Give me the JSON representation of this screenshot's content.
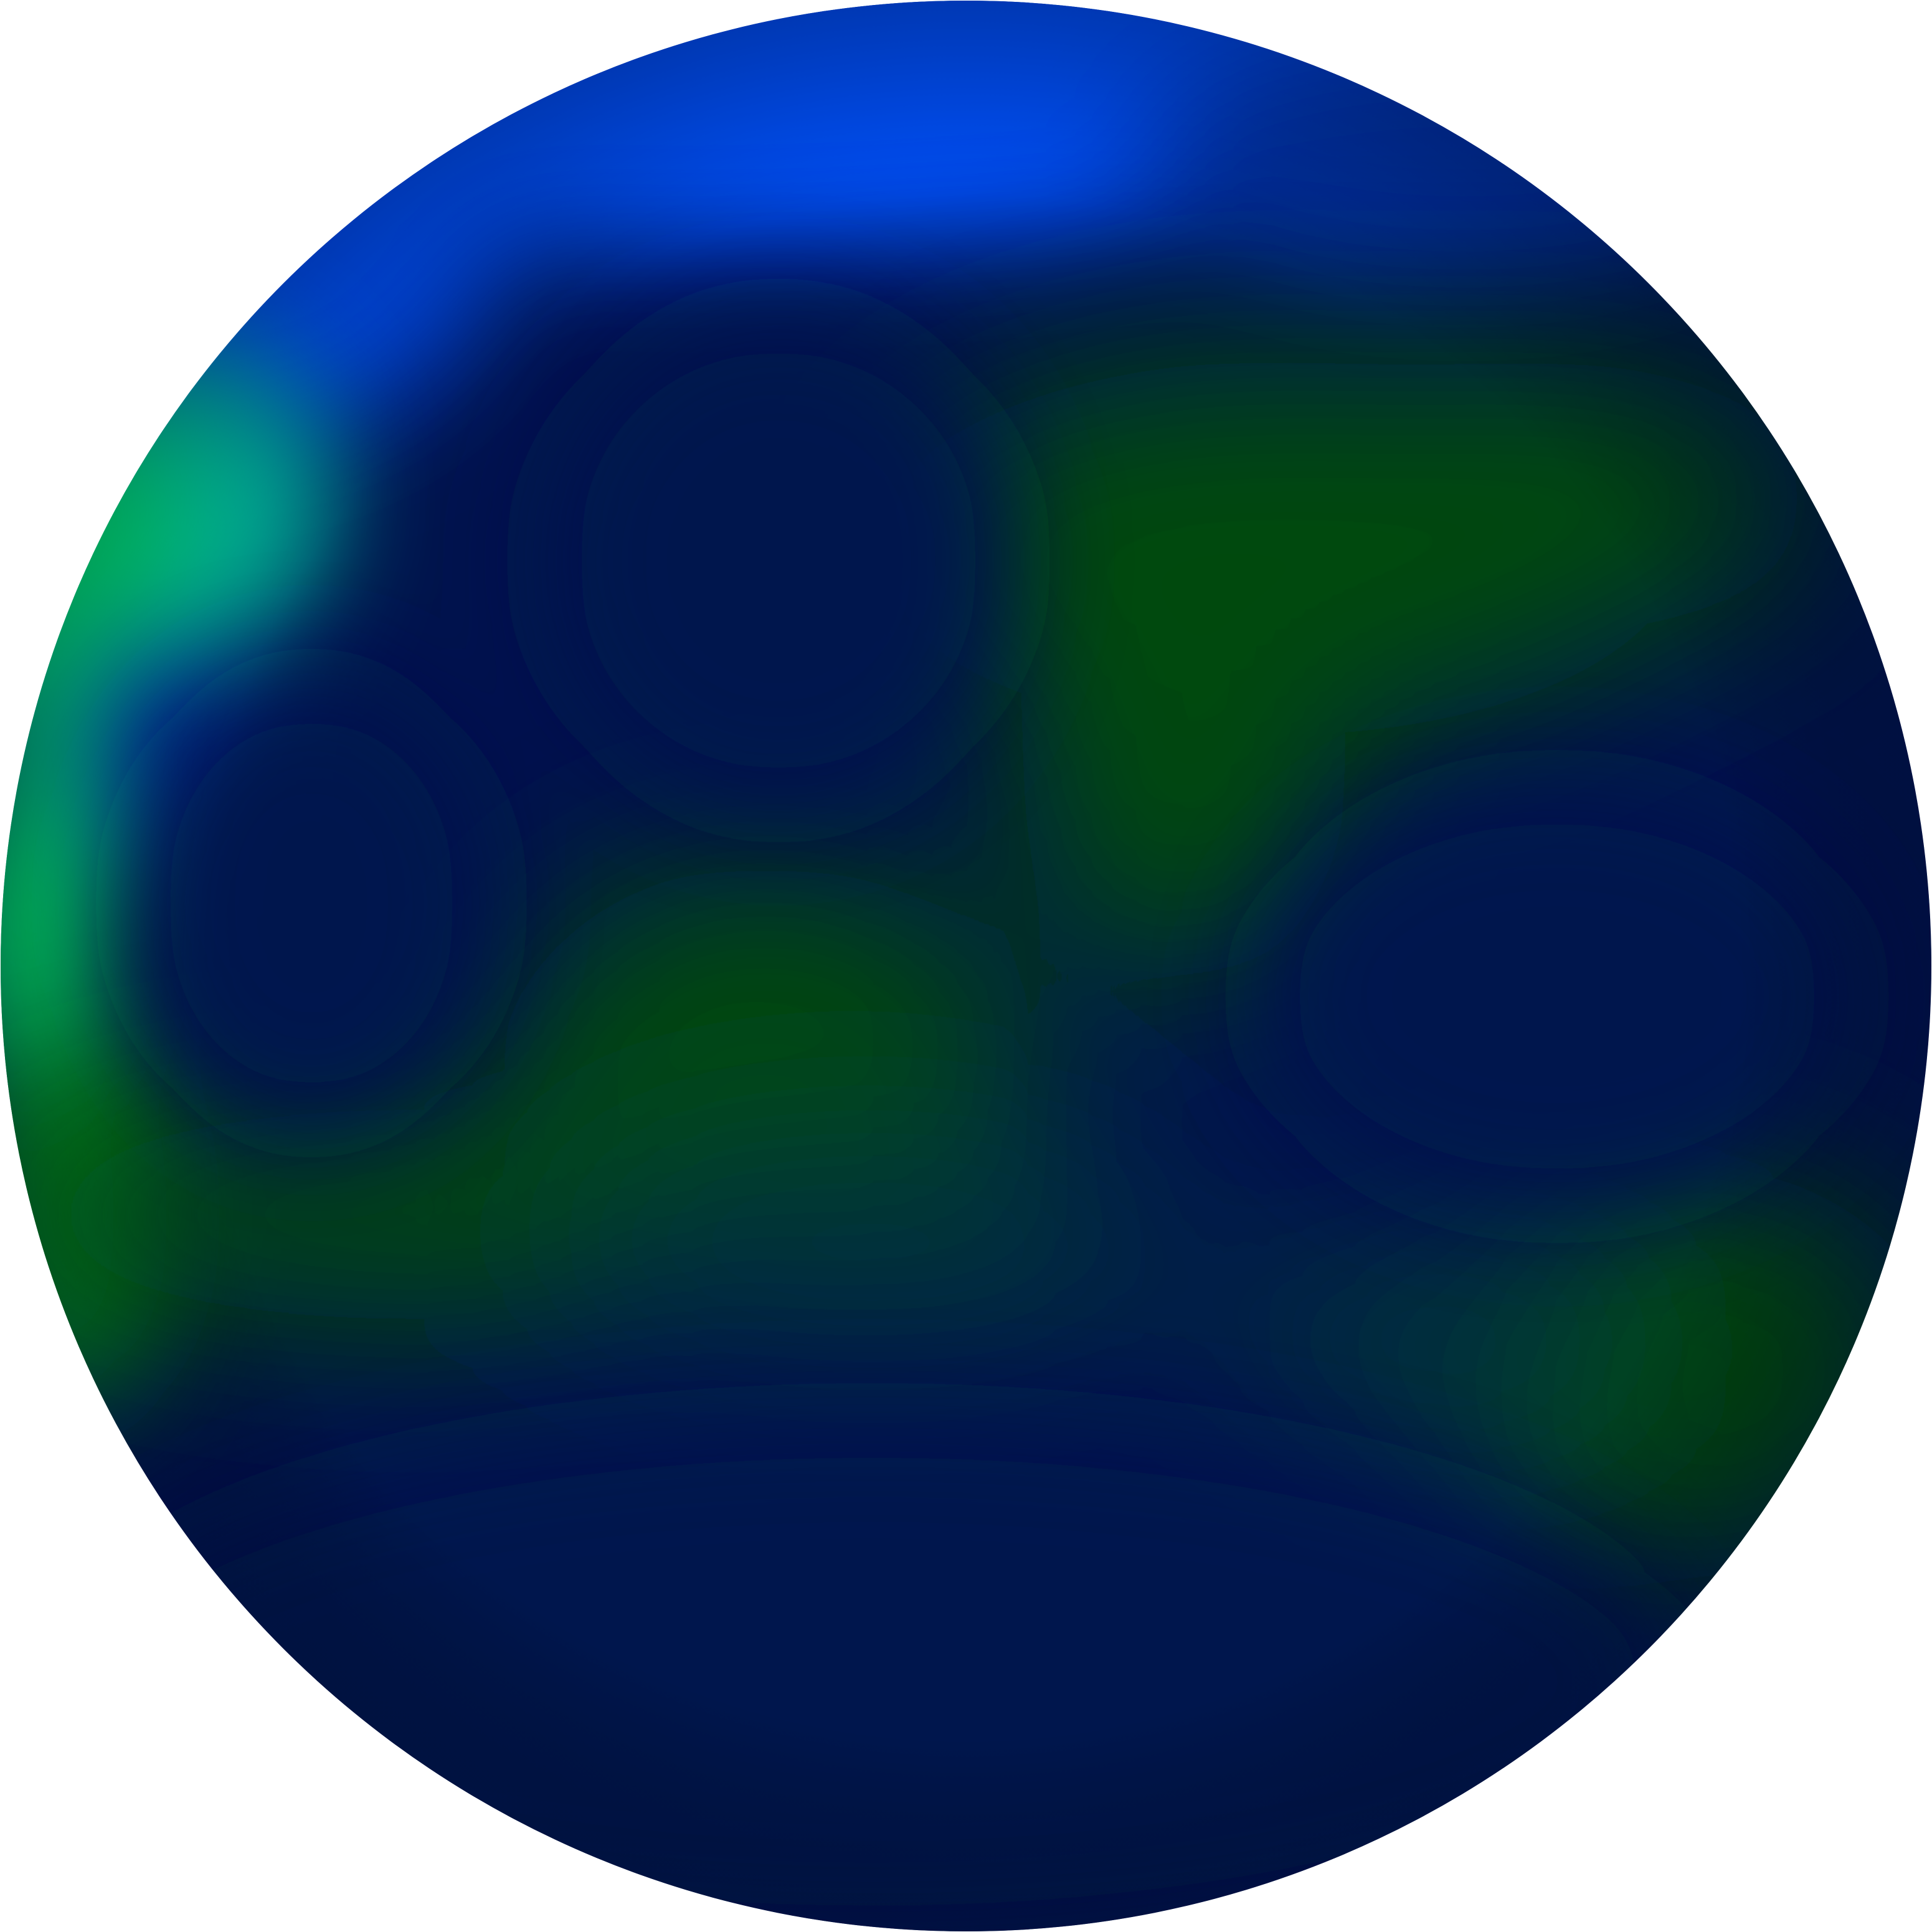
{
  "figure": {
    "shape": "sphere",
    "description_visible_text": "",
    "colors": {
      "background": "#ffffff",
      "deep_ocean": "#00134d",
      "bright_blue": "#0051ff",
      "mid_blue": "#0033a8",
      "cyan_edge": "#00c8a8",
      "bright_green": "#00ff6a",
      "land_green": "#03490f",
      "dark_teal": "#00303a",
      "edge_green": "#00a21a"
    }
  }
}
